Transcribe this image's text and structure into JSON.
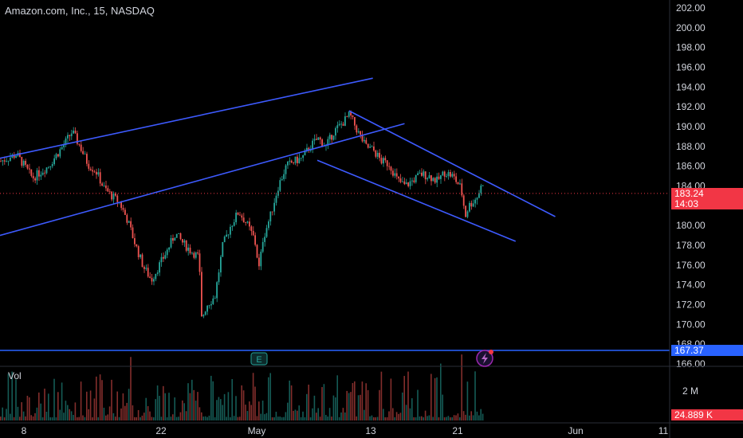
{
  "header": {
    "title": "Amazon.com, Inc., 15, NASDAQ"
  },
  "volume_pane": {
    "label": "Vol",
    "last_value_label": "24.889 K",
    "axis_tick": "2 M"
  },
  "badges": {
    "last_price": "183.24",
    "countdown": "14:03",
    "horizontal_line_price": "167.37"
  },
  "markers": {
    "earnings": "E"
  },
  "colors": {
    "background": "#000000",
    "up": "#26a69a",
    "down": "#ef5350",
    "trendline": "#3d5afe",
    "hline": "#2962ff",
    "price_badge": "#f23645",
    "hline_badge": "#2962ff"
  },
  "chart_data": {
    "type": "candlestick",
    "title": "Amazon.com, Inc., 15, NASDAQ",
    "y_ticks": [
      "166.00",
      "168.00",
      "170.00",
      "172.00",
      "174.00",
      "176.00",
      "178.00",
      "180.00",
      "182.00",
      "184.00",
      "186.00",
      "188.00",
      "190.00",
      "192.00",
      "194.00",
      "196.00",
      "198.00",
      "200.00",
      "202.00"
    ],
    "ylim": [
      166,
      202
    ],
    "x_ticks": [
      "8",
      "22",
      "May",
      "13",
      "21",
      "Jun",
      "11"
    ],
    "last_price": 183.24,
    "horizontal_line": 167.37,
    "trendlines": [
      {
        "name": "upper-ascending-channel",
        "from": {
          "day": 0,
          "price": 186.8
        },
        "to": {
          "day": 47,
          "price": 194.9
        }
      },
      {
        "name": "lower-ascending-channel",
        "from": {
          "day": 0,
          "price": 179.0
        },
        "to": {
          "day": 51,
          "price": 190.3
        }
      },
      {
        "name": "upper-descending-channel",
        "from": {
          "day": 44,
          "price": 191.6
        },
        "to": {
          "day": 70,
          "price": 180.9
        }
      },
      {
        "name": "lower-descending-channel",
        "from": {
          "day": 40,
          "price": 186.6
        },
        "to": {
          "day": 65,
          "price": 178.4
        }
      }
    ],
    "price_path": [
      [
        0,
        186.5
      ],
      [
        2,
        187.2
      ],
      [
        4,
        184.8
      ],
      [
        6,
        186.0
      ],
      [
        8,
        188.2
      ],
      [
        9,
        189.5
      ],
      [
        10,
        188.0
      ],
      [
        11,
        186.2
      ],
      [
        12,
        185.5
      ],
      [
        13,
        183.8
      ],
      [
        14,
        183.0
      ],
      [
        15,
        182.3
      ],
      [
        16,
        180.5
      ],
      [
        17,
        178.0
      ],
      [
        18,
        175.8
      ],
      [
        19,
        174.5
      ],
      [
        20,
        176.0
      ],
      [
        21,
        177.5
      ],
      [
        22,
        179.2
      ],
      [
        23,
        178.2
      ],
      [
        24,
        177.4
      ],
      [
        25,
        176.8
      ],
      [
        25.3,
        170.5
      ],
      [
        26,
        172.0
      ],
      [
        27,
        172.8
      ],
      [
        28,
        178.0
      ],
      [
        29,
        180.0
      ],
      [
        30,
        181.4
      ],
      [
        31,
        180.2
      ],
      [
        32,
        178.6
      ],
      [
        32.6,
        175.5
      ],
      [
        33,
        178.5
      ],
      [
        34,
        181.0
      ],
      [
        35,
        184.0
      ],
      [
        36,
        186.0
      ],
      [
        37,
        186.5
      ],
      [
        38,
        186.8
      ],
      [
        39,
        188.0
      ],
      [
        40,
        188.8
      ],
      [
        41,
        188.0
      ],
      [
        42,
        189.5
      ],
      [
        43,
        190.3
      ],
      [
        44,
        191.2
      ],
      [
        45,
        189.5
      ],
      [
        46,
        188.0
      ],
      [
        47,
        187.6
      ],
      [
        48,
        186.5
      ],
      [
        49,
        186.2
      ],
      [
        50,
        184.6
      ],
      [
        51,
        184.0
      ],
      [
        52,
        184.6
      ],
      [
        53,
        185.2
      ],
      [
        54,
        185.0
      ],
      [
        55,
        184.5
      ],
      [
        56,
        185.4
      ],
      [
        57,
        185.0
      ],
      [
        58,
        183.8
      ],
      [
        58.6,
        181.0
      ],
      [
        59,
        182.0
      ],
      [
        60,
        182.8
      ],
      [
        61,
        184.8
      ],
      [
        62,
        183.24
      ]
    ]
  }
}
